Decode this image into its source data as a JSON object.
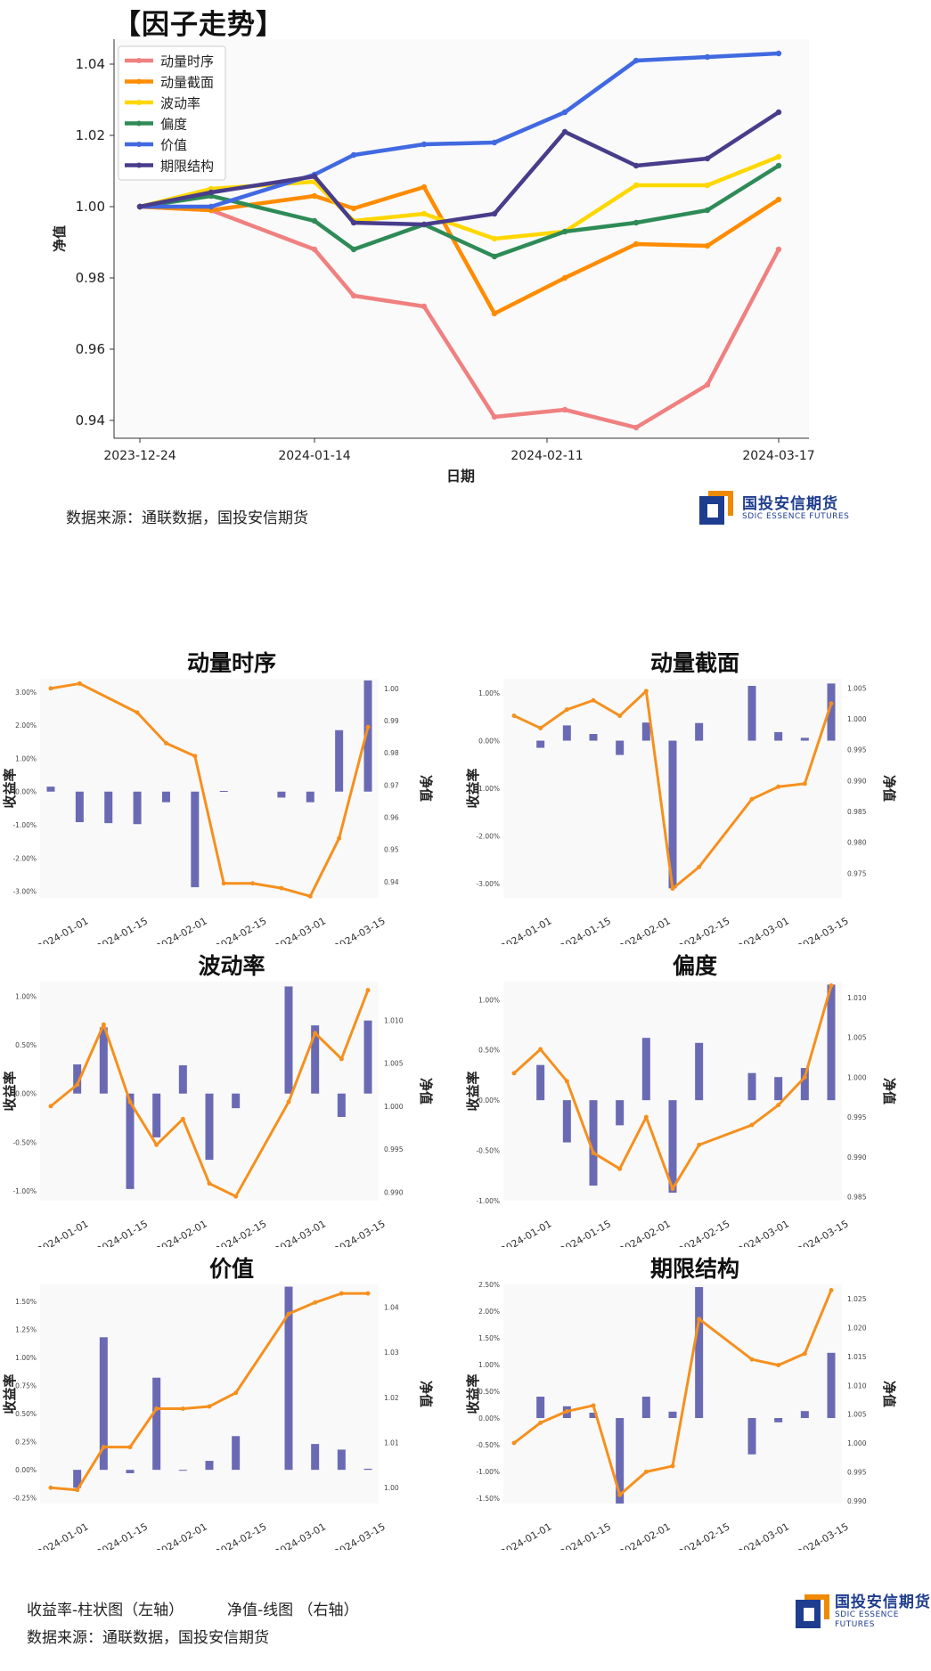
{
  "header": {
    "title": "【因子走势】"
  },
  "source_note": "数据来源：通联数据，国投安信期货",
  "logo": {
    "cn": "国投安信期货",
    "en": "SDIC ESSENCE FUTURES",
    "blue": "#1f3d8f",
    "orange": "#f08a00"
  },
  "footer": {
    "legend_note_bar": "收益率-柱状图（左轴）",
    "legend_note_line": "净值-线图  （右轴）",
    "source": "数据来源：通联数据，国投安信期货"
  },
  "chart_data": [
    {
      "type": "line",
      "title": "【因子走势】",
      "xlabel": "日期",
      "ylabel": "净值",
      "x": [
        "2023-12-24",
        "2023-12-31",
        "2024-01-07",
        "2024-01-14",
        "2024-01-21",
        "2024-01-28",
        "2024-02-04",
        "2024-02-11",
        "2024-02-18",
        "2024-02-25",
        "2024-03-03",
        "2024-03-17"
      ],
      "x_ticks": [
        "2023-12-24",
        "2024-01-14",
        "2024-02-11",
        "2024-03-17"
      ],
      "ylim": [
        0.935,
        1.047
      ],
      "y_ticks": [
        "0.94",
        "0.96",
        "0.98",
        "1.00",
        "1.02",
        "1.04"
      ],
      "legend_position": "top-left",
      "series": [
        {
          "name": "动量时序",
          "color": "#f08080",
          "values": [
            1.0,
            0.999,
            null,
            0.988,
            0.975,
            0.972,
            0.941,
            0.943,
            0.938,
            0.95,
            0.988,
            null
          ]
        },
        {
          "name": "动量截面",
          "color": "#ff8c00",
          "values": [
            1.0,
            0.999,
            null,
            1.003,
            0.9995,
            1.0055,
            0.97,
            0.98,
            0.9895,
            0.989,
            1.002,
            null
          ]
        },
        {
          "name": "波动率",
          "color": "#ffd700",
          "values": [
            1.0,
            1.005,
            null,
            1.007,
            0.996,
            0.998,
            0.991,
            0.993,
            1.006,
            1.006,
            1.014,
            null
          ]
        },
        {
          "name": "偏度",
          "color": "#2e8b57",
          "values": [
            1.0,
            1.003,
            null,
            0.996,
            0.988,
            0.995,
            0.986,
            0.993,
            0.9955,
            0.999,
            1.0115,
            null
          ]
        },
        {
          "name": "价值",
          "color": "#4169e1",
          "values": [
            1.0,
            1.0,
            null,
            1.009,
            1.0145,
            1.0175,
            1.018,
            1.0265,
            1.041,
            1.042,
            1.043,
            null
          ]
        },
        {
          "name": "期限结构",
          "color": "#483d8b",
          "values": [
            1.0,
            1.004,
            null,
            1.0085,
            0.9955,
            0.995,
            0.998,
            1.021,
            1.0115,
            1.0135,
            1.0265,
            null
          ]
        }
      ]
    },
    {
      "type": "bar",
      "title": "动量时序",
      "ylabel": "收益率",
      "y2label": "净值",
      "x_ticks": [
        "2024-01-01",
        "2024-01-15",
        "2024-02-01",
        "2024-02-15",
        "2024-03-01",
        "2024-03-15"
      ],
      "y_ticks": [
        "3.00%",
        "2.00%",
        "1.00%",
        "0.00%",
        "-1.00%",
        "-2.00%",
        "-3.00%"
      ],
      "y2_ticks": [
        "1.00",
        "0.99",
        "0.98",
        "0.97",
        "0.96",
        "0.95",
        "0.94"
      ],
      "bar_values": [
        0.15,
        -0.92,
        -0.95,
        -0.98,
        -0.32,
        -2.88,
        0.02,
        null,
        -0.18,
        -0.32,
        1.85,
        3.35
      ],
      "line_values": [
        1.0,
        1.0015,
        null,
        0.9925,
        0.983,
        0.979,
        0.9395,
        0.9395,
        0.938,
        0.9355,
        0.9535,
        0.988
      ],
      "ylim": [
        -3.2,
        3.4
      ],
      "y2lim": [
        0.935,
        1.003
      ]
    },
    {
      "type": "bar",
      "title": "动量截面",
      "ylabel": "收益率",
      "y2label": "净值",
      "x_ticks": [
        "2024-01-01",
        "2024-01-15",
        "2024-02-01",
        "2024-02-15",
        "2024-03-01",
        "2024-03-15"
      ],
      "y_ticks": [
        "1.00%",
        "0.00%",
        "-1.00%",
        "-2.00%",
        "-3.00%"
      ],
      "y2_ticks": [
        "1.005",
        "1.000",
        "0.995",
        "0.990",
        "0.985",
        "0.980",
        "0.975"
      ],
      "bar_values": [
        null,
        -0.15,
        0.32,
        0.14,
        -0.3,
        0.38,
        -3.1,
        0.37,
        null,
        1.15,
        0.18,
        0.06,
        1.2
      ],
      "line_values": [
        1.0005,
        0.9985,
        1.0015,
        1.003,
        1.0005,
        1.0045,
        0.9725,
        0.976,
        null,
        0.987,
        0.989,
        0.9895,
        1.0025
      ],
      "ylim": [
        -3.3,
        1.3
      ],
      "y2lim": [
        0.971,
        1.0065
      ]
    },
    {
      "type": "bar",
      "title": "波动率",
      "ylabel": "收益率",
      "y2label": "净值",
      "x_ticks": [
        "2024-01-01",
        "2024-01-15",
        "2024-02-01",
        "2024-02-15",
        "2024-03-01",
        "2024-03-15"
      ],
      "y_ticks": [
        "1.00%",
        "0.50%",
        "0.00%",
        "-0.50%",
        "-1.00%"
      ],
      "y2_ticks": [
        "1.010",
        "1.005",
        "1.000",
        "0.995",
        "0.990"
      ],
      "bar_values": [
        null,
        0.3,
        0.68,
        -0.98,
        -0.45,
        0.29,
        -0.68,
        -0.15,
        null,
        1.1,
        0.7,
        -0.24,
        0.75
      ],
      "line_values": [
        1.0,
        1.0025,
        1.0095,
        1.0005,
        0.9955,
        0.9985,
        0.991,
        0.9895,
        null,
        1.0005,
        1.0085,
        1.0055,
        1.0135
      ],
      "ylim": [
        -1.1,
        1.15
      ],
      "y2lim": [
        0.989,
        1.0145
      ]
    },
    {
      "type": "bar",
      "title": "偏度",
      "ylabel": "收益率",
      "y2label": "净值",
      "x_ticks": [
        "2024-01-01",
        "2024-01-15",
        "2024-02-01",
        "2024-02-15",
        "2024-03-01",
        "2024-03-15"
      ],
      "y_ticks": [
        "1.00%",
        "0.50%",
        "0.00%",
        "-0.50%",
        "-1.00%"
      ],
      "y2_ticks": [
        "1.010",
        "1.005",
        "1.000",
        "0.995",
        "0.990",
        "0.985"
      ],
      "bar_values": [
        null,
        0.35,
        -0.42,
        -0.85,
        -0.25,
        0.62,
        -0.92,
        0.57,
        null,
        0.27,
        0.23,
        0.32,
        1.15
      ],
      "line_values": [
        1.0005,
        1.0035,
        0.9995,
        0.9905,
        0.9885,
        0.995,
        0.986,
        0.9915,
        null,
        0.994,
        0.9965,
        1.0,
        1.0115
      ],
      "ylim": [
        -1.0,
        1.18
      ],
      "y2lim": [
        0.9845,
        1.012
      ]
    },
    {
      "type": "bar",
      "title": "价值",
      "ylabel": "收益率",
      "y2label": "净值",
      "x_ticks": [
        "2024-01-01",
        "2024-01-15",
        "2024-02-01",
        "2024-02-15",
        "2024-03-01",
        "2024-03-15"
      ],
      "y_ticks": [
        "1.50%",
        "1.25%",
        "1.00%",
        "0.75%",
        "0.50%",
        "0.25%",
        "0.00%",
        "-0.25%"
      ],
      "y2_ticks": [
        "1.04",
        "1.03",
        "1.02",
        "1.01",
        "1.00"
      ],
      "bar_values": [
        null,
        -0.16,
        1.18,
        -0.03,
        0.82,
        0.0,
        0.08,
        0.3,
        null,
        1.63,
        0.23,
        0.18,
        0.01
      ],
      "line_values": [
        1.0,
        0.9995,
        1.009,
        1.009,
        1.0175,
        1.0175,
        1.018,
        1.021,
        null,
        1.0385,
        1.041,
        1.043,
        1.043
      ],
      "ylim": [
        -0.3,
        1.65
      ],
      "y2lim": [
        0.9965,
        1.045
      ]
    },
    {
      "type": "bar",
      "title": "期限结构",
      "ylabel": "收益率",
      "y2label": "净值",
      "x_ticks": [
        "2024-01-01",
        "2024-01-15",
        "2024-02-01",
        "2024-02-15",
        "2024-03-01",
        "2024-03-15"
      ],
      "y_ticks": [
        "2.50%",
        "2.00%",
        "1.50%",
        "1.00%",
        "0.50%",
        "0.00%",
        "-0.50%",
        "-1.00%",
        "-1.50%"
      ],
      "y2_ticks": [
        "1.025",
        "1.020",
        "1.015",
        "1.010",
        "1.005",
        "1.000",
        "0.995",
        "0.990"
      ],
      "bar_values": [
        null,
        0.4,
        0.22,
        0.1,
        -1.6,
        0.4,
        0.12,
        2.45,
        null,
        -0.68,
        -0.08,
        0.13,
        1.22
      ],
      "line_values": [
        1.0,
        1.0035,
        1.0055,
        1.0065,
        0.991,
        0.995,
        0.996,
        1.0215,
        null,
        1.0145,
        1.0135,
        1.0155,
        1.0265
      ],
      "ylim": [
        -1.6,
        2.5
      ],
      "y2lim": [
        0.9895,
        1.0275
      ]
    }
  ]
}
